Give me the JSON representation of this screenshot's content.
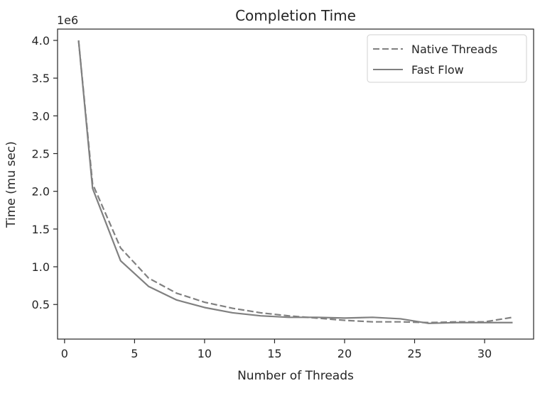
{
  "chart_data": {
    "type": "line",
    "title": "Completion Time",
    "xlabel": "Number of Threads",
    "ylabel": "Time (mu sec)",
    "y_offset_label": "1e6",
    "xlim": [
      -0.5,
      33.5
    ],
    "ylim": [
      0.0415,
      4.15
    ],
    "x_ticks": [
      0,
      5,
      10,
      15,
      20,
      25,
      30
    ],
    "x_tick_labels": [
      "0",
      "5",
      "10",
      "15",
      "20",
      "25",
      "30"
    ],
    "y_ticks": [
      0.5,
      1.0,
      1.5,
      2.0,
      2.5,
      3.0,
      3.5,
      4.0
    ],
    "y_tick_labels": [
      "0.5",
      "1.0",
      "1.5",
      "2.0",
      "2.5",
      "3.0",
      "3.5",
      "4.0"
    ],
    "grid": false,
    "legend_position": "top-right",
    "series": [
      {
        "name": "Native Threads",
        "style": "dashed",
        "color": "#808080",
        "x": [
          1,
          2,
          4,
          6,
          8,
          10,
          12,
          14,
          16,
          18,
          20,
          22,
          24,
          26,
          28,
          30,
          32
        ],
        "values": [
          4.0,
          2.1,
          1.25,
          0.85,
          0.65,
          0.53,
          0.45,
          0.39,
          0.35,
          0.32,
          0.29,
          0.27,
          0.27,
          0.26,
          0.27,
          0.27,
          0.33
        ]
      },
      {
        "name": "Fast Flow",
        "style": "solid",
        "color": "#808080",
        "x": [
          1,
          2,
          4,
          6,
          8,
          10,
          12,
          14,
          16,
          18,
          20,
          22,
          24,
          26,
          28,
          30,
          32
        ],
        "values": [
          4.0,
          2.04,
          1.08,
          0.74,
          0.56,
          0.46,
          0.39,
          0.35,
          0.33,
          0.33,
          0.32,
          0.33,
          0.31,
          0.25,
          0.26,
          0.26,
          0.26
        ]
      }
    ]
  }
}
